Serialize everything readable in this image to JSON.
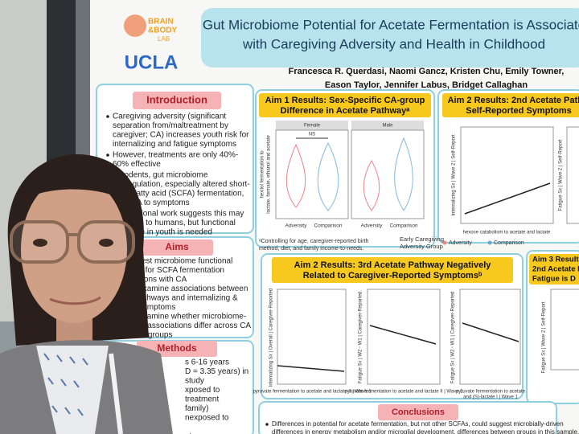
{
  "poster": {
    "logo": {
      "brand": [
        "BRAIN",
        "&BODY"
      ],
      "lab": "LAB",
      "university": "UCLA"
    },
    "title": [
      "Gut Microbiome Potential for Acetate Fermentation is Associate",
      "with Caregiving Adversity and Health in Childhood"
    ],
    "authors": [
      "Francesca R. Querdasi, Naomi Gancz, Kristen Chu, Emily Towner,",
      "Eason Taylor, Jennifer Labus, Bridget Callaghan"
    ],
    "introduction": {
      "heading": "Introduction",
      "bullets": [
        [
          "Caregiving adversity (significant",
          "separation from/maltreatment by",
          "caregiver; CA) increases youth risk for",
          "internalizing and fatigue symptoms"
        ],
        [
          "However, treatments are only 40%-",
          "60% effective"
        ],
        [
          "In rodents, gut microbiome",
          "dysregulation, especially altered short-",
          "chain fatty acid (SCFA) fermentation,",
          "links CA to symptoms"
        ],
        [
          "Correlational work suggests this may",
          "translate to humans, but functional",
          "evidence in youth is needed"
        ]
      ]
    },
    "aims": {
      "heading": "Aims",
      "lines": [
        "Aim 1: Test microbiome functional",
        "potential for SCFA fermentation",
        "associations with CA",
        "Aim 2: Examine associations between",
        "SCFA pathways and internalizing &",
        "fatigue symptoms",
        "Aim 3: Examine whether microbiome-",
        "symptom associations differ across CA",
        "exposure groups"
      ]
    },
    "methods": {
      "heading": "Methods",
      "lines": [
        "s 6-16 years",
        "D = 3.35 years) in",
        "study",
        "xposed to",
        "treatment",
        "family)",
        "nexposed to",
        "",
        "at",
        "d via"
      ]
    },
    "aim1": {
      "heading": [
        "Aim 1 Results: Sex-Specific CA-group",
        "Difference in Acetate Pathwayᵃ"
      ],
      "panels": [
        "Female",
        "Male"
      ],
      "annotation": "NS",
      "y_label": [
        "hexitol fermentation to",
        "lactate, formate, ethanol and acetate"
      ],
      "x_categories": [
        "Adversity",
        "Comparison",
        "Adversity",
        "Comparison"
      ],
      "footnote": [
        "ᵃControlling for age, caregiver-reported birth",
        "method, diet, and family income-to-needs."
      ],
      "legend": {
        "title": [
          "Early Caregiving",
          "Adversity Group"
        ],
        "items": [
          "Adversity",
          "Comparison"
        ]
      }
    },
    "aim2a": {
      "heading": [
        "Aim 2 Results: 2nd Acetate Pathw",
        "Self-Reported Symptoms"
      ],
      "y_labels": [
        "Internalizing Sx | Wave 2 | Self-Report",
        "Fatigue Sx | Wave 2 | Self-Report"
      ],
      "x_label": "hexose catabolism to acetate and lactate"
    },
    "aim2b": {
      "heading": [
        "Aim 2 Results: 3rd Acetate Pathway Negatively",
        "Related to Caregiver-Reported Symptomsᵇ"
      ],
      "y_labels": [
        "Internalizing Sx | Overall | Caregiver-Reported",
        "Fatigue Sx | W2 - W1 | Caregiver-Reported",
        "Fatigue Sx | W2 - W1 | Caregiver-Reported"
      ],
      "x_labels": [
        [
          "pyruvate fermentation to acetate and lactate II | Wave 1"
        ],
        [
          "pyruvate fermentation to acetate and lactate II | Wave 1"
        ],
        [
          "pyruvate fermentation to acetate",
          "and (S)-lactate I | Wave 1"
        ]
      ]
    },
    "aim3": {
      "heading": [
        "Aim 3 Results",
        "2nd Acetate Pa",
        "Fatigue is D"
      ],
      "y_label": "Fatigue Sx | Wave 2 | Self-Report"
    },
    "conclusions": {
      "heading": "Conclusions",
      "lines": [
        "Differences in potential for acetate fermentation, but not other SCFAs, could suggest microbially-driven",
        "differences in energy metabolism and/or microglial development.   differences between groups in this sample."
      ]
    }
  }
}
